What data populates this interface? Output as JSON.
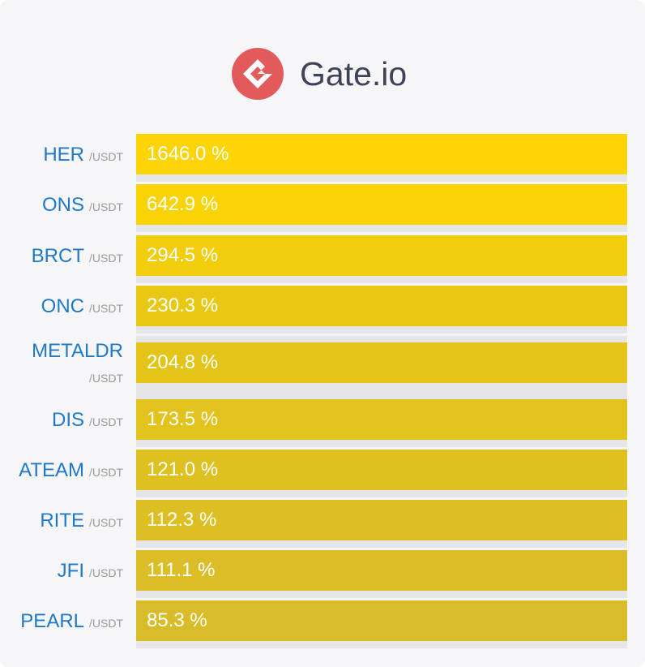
{
  "brand": {
    "name": "Gate.io",
    "logo": "gateio-logo-icon",
    "logo_color": "#e35a5a"
  },
  "quote_suffix": "/USDT",
  "gainers": [
    {
      "symbol": "HER",
      "quote": "/USDT",
      "change": "1646.0 %",
      "change_value": 1646.0,
      "color": "#fdd506"
    },
    {
      "symbol": "ONS",
      "quote": "/USDT",
      "change": "642.9 %",
      "change_value": 642.9,
      "color": "#fad307"
    },
    {
      "symbol": "BRCT",
      "quote": "/USDT",
      "change": "294.5 %",
      "change_value": 294.5,
      "color": "#f2cd0c"
    },
    {
      "symbol": "ONC",
      "quote": "/USDT",
      "change": "230.3 %",
      "change_value": 230.3,
      "color": "#e9c814"
    },
    {
      "symbol": "METALDR",
      "quote": "/USDT",
      "change": "204.8 %",
      "change_value": 204.8,
      "color": "#e4c419"
    },
    {
      "symbol": "DIS",
      "quote": "/USDT",
      "change": "173.5 %",
      "change_value": 173.5,
      "color": "#e2c21d"
    },
    {
      "symbol": "ATEAM",
      "quote": "/USDT",
      "change": "121.0 %",
      "change_value": 121.0,
      "color": "#dfc021"
    },
    {
      "symbol": "RITE",
      "quote": "/USDT",
      "change": "112.3 %",
      "change_value": 112.3,
      "color": "#ddbf24"
    },
    {
      "symbol": "JFI",
      "quote": "/USDT",
      "change": "111.1 %",
      "change_value": 111.1,
      "color": "#dbbe27"
    },
    {
      "symbol": "PEARL",
      "quote": "/USDT",
      "change": "85.3 %",
      "change_value": 85.3,
      "color": "#d9bc2a"
    }
  ]
}
